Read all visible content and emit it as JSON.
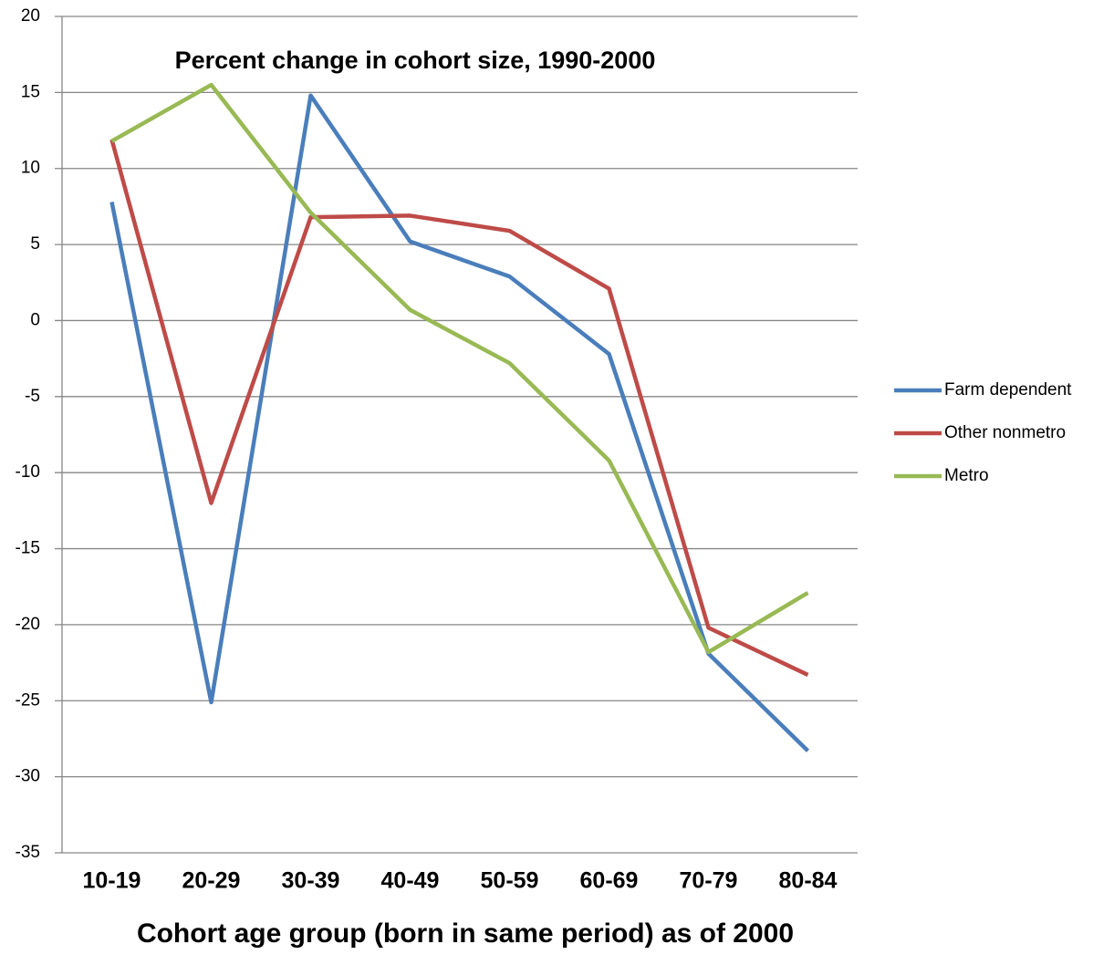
{
  "chart_data": {
    "type": "line",
    "title": "Percent change in cohort size, 1990-2000",
    "x_label": "Cohort age group (born in same period) as of 2000",
    "categories": [
      "10-19",
      "20-29",
      "30-39",
      "40-49",
      "50-59",
      "60-69",
      "70-79",
      "80-84"
    ],
    "series": [
      {
        "name": "Farm dependent",
        "color": "#4a7ebb",
        "values": [
          7.8,
          -25.1,
          14.8,
          5.2,
          2.9,
          -2.2,
          -21.9,
          -28.3
        ]
      },
      {
        "name": "Other nonmetro",
        "color": "#be4b48",
        "values": [
          11.9,
          -12,
          6.8,
          6.9,
          5.9,
          2.1,
          -20.2,
          -23.3
        ]
      },
      {
        "name": "Metro",
        "color": "#98b954",
        "values": [
          11.8,
          15.5,
          7.1,
          0.7,
          -2.8,
          -9.2,
          -21.8,
          -17.9
        ]
      }
    ],
    "ylim": [
      -35,
      20
    ],
    "yticks": [
      -35,
      -30,
      -25,
      -20,
      -15,
      -10,
      -5,
      0,
      5,
      10,
      15,
      20
    ],
    "grid": true,
    "legend": "right"
  }
}
